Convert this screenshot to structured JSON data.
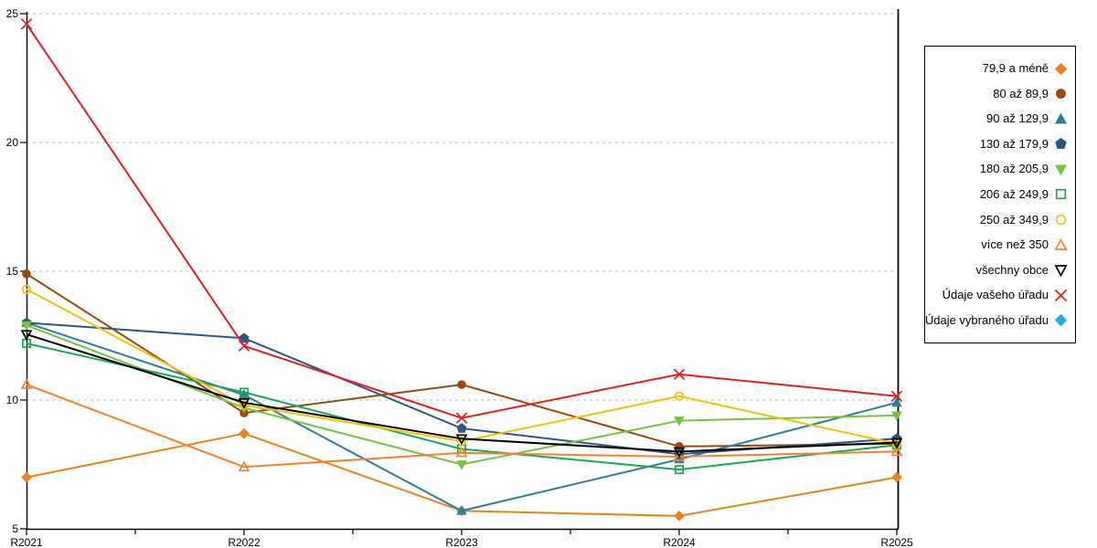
{
  "chart_data": {
    "type": "line",
    "title": "",
    "xlabel": "",
    "ylabel": "",
    "categories": [
      "R2021",
      "R2022",
      "R2023",
      "R2024",
      "R2025"
    ],
    "ylim": [
      5,
      25
    ],
    "yticks": [
      5,
      10,
      15,
      20,
      25
    ],
    "grid": "horizontal dashed at 10,15,20,25",
    "legend_position": "right",
    "series": [
      {
        "name": "79,9 a méně",
        "color": "#E8821E",
        "marker": "diamond",
        "fill": "filled",
        "values": [
          7.0,
          8.7,
          5.7,
          5.5,
          7.0
        ]
      },
      {
        "name": "80 až 89,9",
        "color": "#99470A",
        "marker": "circle",
        "fill": "filled",
        "values": [
          14.9,
          9.5,
          10.6,
          8.2,
          8.3
        ]
      },
      {
        "name": "90 až 129,9",
        "color": "#2E7C99",
        "marker": "triangle-up",
        "fill": "filled",
        "values": [
          13.0,
          10.2,
          5.7,
          7.7,
          9.9
        ]
      },
      {
        "name": "130 až 179,9",
        "color": "#2D5580",
        "marker": "pentagon",
        "fill": "filled",
        "values": [
          13.0,
          12.4,
          8.9,
          7.9,
          8.5
        ]
      },
      {
        "name": "180 až 205,9",
        "color": "#77C143",
        "marker": "triangle-down",
        "fill": "filled",
        "values": [
          12.9,
          9.7,
          7.5,
          9.2,
          9.4
        ]
      },
      {
        "name": "206 až 249,9",
        "color": "#1DA750",
        "marker": "square",
        "fill": "open",
        "values": [
          12.2,
          10.3,
          8.1,
          7.3,
          8.25
        ]
      },
      {
        "name": "250 až 349,9",
        "color": "#F2C010",
        "marker": "circle",
        "fill": "open",
        "values": [
          14.3,
          9.8,
          8.4,
          10.15,
          8.3
        ]
      },
      {
        "name": "více než 350",
        "color": "#F28232",
        "marker": "triangle-up",
        "fill": "open",
        "values": [
          10.6,
          7.4,
          7.95,
          7.8,
          8.0
        ]
      },
      {
        "name": "všechny obce",
        "color": "#000000",
        "marker": "triangle-down",
        "fill": "open",
        "values": [
          12.55,
          9.9,
          8.5,
          8.0,
          8.35
        ]
      },
      {
        "name": "Údaje vašeho úřadu",
        "color": "#E02020",
        "marker": "x",
        "fill": "open",
        "values": [
          24.6,
          12.1,
          9.3,
          11.0,
          10.15
        ]
      },
      {
        "name": "Údaje vybraného úřadu",
        "color": "#29ABE2",
        "marker": "diamond",
        "fill": "filled",
        "values": []
      }
    ],
    "colors": {
      "axis": "#000000",
      "gridline": "#BBBBBB",
      "background": "#FFFFFF"
    }
  }
}
